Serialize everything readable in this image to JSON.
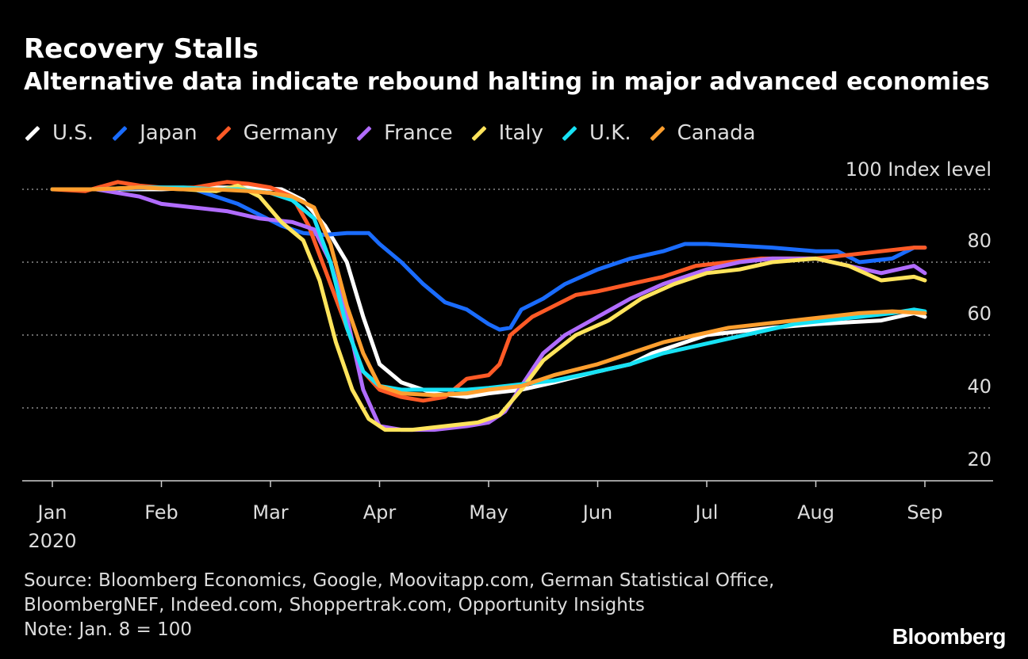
{
  "title": "Recovery Stalls",
  "subtitle": "Alternative data indicate rebound halting in major advanced economies",
  "source_lines": [
    "Source: Bloomberg Economics, Google, Moovitapp.com, German Statistical Office,",
    "BloombergNEF, Indeed.com, Shoppertrak.com, Opportunity Insights",
    "Note: Jan. 8 = 100"
  ],
  "logo": "Bloomberg",
  "chart_data": {
    "type": "line",
    "ylim": [
      20,
      100
    ],
    "yticks": [
      20,
      40,
      60,
      80
    ],
    "ytick_labels": [
      "20",
      "40",
      "60",
      "80"
    ],
    "top_label": "100 Index level",
    "x_unit": "month",
    "xlim": [
      0,
      8
    ],
    "xticks": [
      0,
      1,
      2,
      3,
      4,
      5,
      6,
      7,
      8
    ],
    "xtick_labels": [
      "Jan",
      "Feb",
      "Mar",
      "Apr",
      "May",
      "Jun",
      "Jul",
      "Aug",
      "Sep"
    ],
    "x_year_label": "2020",
    "grid": "horizontal dotted",
    "legend_position": "top-left",
    "series": [
      {
        "name": "U.S.",
        "color": "#ffffff",
        "points": [
          [
            0,
            100
          ],
          [
            0.5,
            100
          ],
          [
            1,
            100
          ],
          [
            1.4,
            100.5
          ],
          [
            1.8,
            100.5
          ],
          [
            2.1,
            100
          ],
          [
            2.3,
            97
          ],
          [
            2.5,
            90
          ],
          [
            2.7,
            80
          ],
          [
            2.85,
            65
          ],
          [
            3,
            52
          ],
          [
            3.2,
            47
          ],
          [
            3.5,
            44
          ],
          [
            3.8,
            43
          ],
          [
            4,
            44
          ],
          [
            4.3,
            45
          ],
          [
            4.6,
            47
          ],
          [
            5,
            50
          ],
          [
            5.3,
            52
          ],
          [
            5.5,
            55
          ],
          [
            5.8,
            58
          ],
          [
            6,
            60
          ],
          [
            6.3,
            61
          ],
          [
            6.6,
            62
          ],
          [
            7,
            63
          ],
          [
            7.3,
            63.5
          ],
          [
            7.6,
            64
          ],
          [
            7.9,
            66
          ],
          [
            8,
            65
          ]
        ]
      },
      {
        "name": "Japan",
        "color": "#1a6cff",
        "points": [
          [
            0,
            100
          ],
          [
            0.5,
            100
          ],
          [
            1,
            100.5
          ],
          [
            1.3,
            100
          ],
          [
            1.5,
            98
          ],
          [
            1.7,
            96
          ],
          [
            1.9,
            93
          ],
          [
            2.1,
            90
          ],
          [
            2.3,
            88
          ],
          [
            2.5,
            87.5
          ],
          [
            2.7,
            88
          ],
          [
            2.9,
            88
          ],
          [
            3,
            85
          ],
          [
            3.2,
            80
          ],
          [
            3.4,
            74
          ],
          [
            3.6,
            69
          ],
          [
            3.8,
            67
          ],
          [
            4,
            63
          ],
          [
            4.1,
            61.5
          ],
          [
            4.2,
            62
          ],
          [
            4.3,
            67
          ],
          [
            4.5,
            70
          ],
          [
            4.7,
            74
          ],
          [
            5,
            78
          ],
          [
            5.3,
            81
          ],
          [
            5.6,
            83
          ],
          [
            5.8,
            85
          ],
          [
            6,
            85
          ],
          [
            6.3,
            84.5
          ],
          [
            6.6,
            84
          ],
          [
            7,
            83
          ],
          [
            7.2,
            83
          ],
          [
            7.4,
            80
          ],
          [
            7.7,
            81
          ],
          [
            7.9,
            84
          ],
          [
            8,
            84
          ]
        ]
      },
      {
        "name": "Germany",
        "color": "#ff5a26",
        "points": [
          [
            0,
            100
          ],
          [
            0.3,
            99.5
          ],
          [
            0.6,
            102
          ],
          [
            0.8,
            101
          ],
          [
            1,
            100.5
          ],
          [
            1.3,
            100.5
          ],
          [
            1.6,
            102
          ],
          [
            1.8,
            101.5
          ],
          [
            2,
            100.5
          ],
          [
            2.2,
            98
          ],
          [
            2.35,
            90
          ],
          [
            2.5,
            78
          ],
          [
            2.7,
            62
          ],
          [
            2.85,
            50
          ],
          [
            3,
            45
          ],
          [
            3.2,
            43
          ],
          [
            3.4,
            42
          ],
          [
            3.6,
            43
          ],
          [
            3.8,
            48
          ],
          [
            4,
            49
          ],
          [
            4.1,
            52
          ],
          [
            4.2,
            60
          ],
          [
            4.4,
            65
          ],
          [
            4.6,
            68
          ],
          [
            4.8,
            71
          ],
          [
            5,
            72
          ],
          [
            5.3,
            74
          ],
          [
            5.6,
            76
          ],
          [
            5.9,
            79
          ],
          [
            6.2,
            80
          ],
          [
            6.5,
            81
          ],
          [
            6.8,
            81
          ],
          [
            7,
            81
          ],
          [
            7.3,
            82
          ],
          [
            7.6,
            83
          ],
          [
            7.9,
            84
          ],
          [
            8,
            84
          ]
        ]
      },
      {
        "name": "France",
        "color": "#b16cff",
        "points": [
          [
            0,
            100
          ],
          [
            0.4,
            100
          ],
          [
            0.8,
            98
          ],
          [
            1,
            96
          ],
          [
            1.3,
            95
          ],
          [
            1.6,
            94
          ],
          [
            1.9,
            92
          ],
          [
            2.2,
            91
          ],
          [
            2.4,
            89
          ],
          [
            2.55,
            80
          ],
          [
            2.7,
            65
          ],
          [
            2.85,
            45
          ],
          [
            3,
            35
          ],
          [
            3.2,
            34
          ],
          [
            3.5,
            34
          ],
          [
            3.8,
            35
          ],
          [
            4,
            36
          ],
          [
            4.15,
            39
          ],
          [
            4.3,
            46
          ],
          [
            4.5,
            55
          ],
          [
            4.7,
            60
          ],
          [
            5,
            65
          ],
          [
            5.3,
            70
          ],
          [
            5.6,
            74
          ],
          [
            6,
            78
          ],
          [
            6.3,
            80
          ],
          [
            6.6,
            81
          ],
          [
            7,
            81
          ],
          [
            7.3,
            79
          ],
          [
            7.6,
            77
          ],
          [
            7.9,
            79
          ],
          [
            8,
            77
          ]
        ]
      },
      {
        "name": "Italy",
        "color": "#ffe45c",
        "points": [
          [
            0,
            100
          ],
          [
            0.4,
            100
          ],
          [
            0.8,
            100.5
          ],
          [
            1.2,
            100
          ],
          [
            1.5,
            99.5
          ],
          [
            1.7,
            101
          ],
          [
            1.9,
            98
          ],
          [
            2.1,
            91
          ],
          [
            2.3,
            86
          ],
          [
            2.45,
            75
          ],
          [
            2.6,
            58
          ],
          [
            2.75,
            45
          ],
          [
            2.9,
            37
          ],
          [
            3.05,
            34
          ],
          [
            3.3,
            34
          ],
          [
            3.6,
            35
          ],
          [
            3.9,
            36
          ],
          [
            4.1,
            38
          ],
          [
            4.3,
            45
          ],
          [
            4.5,
            53
          ],
          [
            4.8,
            60
          ],
          [
            5.1,
            64
          ],
          [
            5.4,
            70
          ],
          [
            5.7,
            74
          ],
          [
            6,
            77
          ],
          [
            6.3,
            78
          ],
          [
            6.6,
            80
          ],
          [
            7,
            81
          ],
          [
            7.3,
            79
          ],
          [
            7.6,
            75
          ],
          [
            7.9,
            76
          ],
          [
            8,
            75
          ]
        ]
      },
      {
        "name": "U.K.",
        "color": "#17e2f5",
        "points": [
          [
            0,
            100
          ],
          [
            0.4,
            100
          ],
          [
            0.8,
            100.5
          ],
          [
            1.2,
            100.5
          ],
          [
            1.5,
            100
          ],
          [
            1.7,
            100
          ],
          [
            2,
            99
          ],
          [
            2.2,
            97
          ],
          [
            2.4,
            92
          ],
          [
            2.55,
            80
          ],
          [
            2.7,
            62
          ],
          [
            2.85,
            50
          ],
          [
            3,
            46
          ],
          [
            3.2,
            45
          ],
          [
            3.5,
            45
          ],
          [
            3.8,
            45
          ],
          [
            4,
            45.5
          ],
          [
            4.3,
            46.5
          ],
          [
            4.6,
            47.5
          ],
          [
            5,
            50
          ],
          [
            5.3,
            52
          ],
          [
            5.6,
            55
          ],
          [
            5.9,
            57
          ],
          [
            6.2,
            59
          ],
          [
            6.5,
            61
          ],
          [
            6.8,
            63
          ],
          [
            7.1,
            64
          ],
          [
            7.4,
            65
          ],
          [
            7.7,
            66
          ],
          [
            7.9,
            67
          ],
          [
            8,
            66.5
          ]
        ]
      },
      {
        "name": "Canada",
        "color": "#ff9f2e",
        "points": [
          [
            0,
            100
          ],
          [
            0.4,
            100
          ],
          [
            0.8,
            100.5
          ],
          [
            1.2,
            100
          ],
          [
            1.5,
            100
          ],
          [
            1.8,
            99.5
          ],
          [
            2,
            99
          ],
          [
            2.2,
            98
          ],
          [
            2.4,
            95
          ],
          [
            2.55,
            85
          ],
          [
            2.7,
            68
          ],
          [
            2.85,
            55
          ],
          [
            3,
            46
          ],
          [
            3.2,
            44
          ],
          [
            3.5,
            43.5
          ],
          [
            3.8,
            44
          ],
          [
            4,
            45
          ],
          [
            4.3,
            46
          ],
          [
            4.6,
            49
          ],
          [
            5,
            52
          ],
          [
            5.3,
            55
          ],
          [
            5.6,
            58
          ],
          [
            5.9,
            60
          ],
          [
            6.2,
            62
          ],
          [
            6.5,
            63
          ],
          [
            6.8,
            64
          ],
          [
            7.1,
            65
          ],
          [
            7.4,
            66
          ],
          [
            7.7,
            66.5
          ],
          [
            8,
            66
          ]
        ]
      }
    ]
  }
}
